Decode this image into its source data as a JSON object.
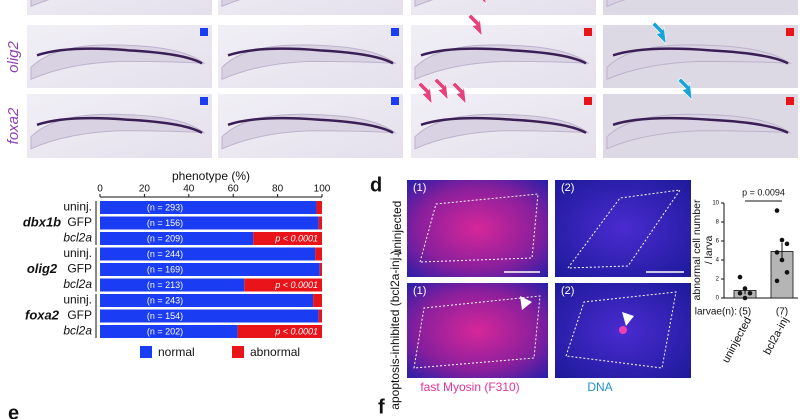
{
  "gene_labels": [
    "olig2",
    "foxa2"
  ],
  "panel_labels": {
    "d": "d",
    "e": "e",
    "f": "f"
  },
  "panel_d": {
    "rows": [
      "uninjected",
      "apoptosis-inhibited (bcl2a-inj.)"
    ],
    "columns": [
      "(1)",
      "(2)"
    ],
    "stain_labels": [
      {
        "text": "fast Myosin (F310)",
        "color": "#e0339a"
      },
      {
        "text": "DNA",
        "color": "#1f8fd6"
      }
    ]
  },
  "chart_data": [
    {
      "type": "bar",
      "orientation": "horizontal",
      "stacked": true,
      "xlabel": "phenotype (%)",
      "groups": [
        "dbx1b",
        "olig2",
        "foxa2"
      ],
      "categories": [
        "uninj.",
        "GFP",
        "bcl2a",
        "uninj.",
        "GFP",
        "bcl2a",
        "uninj.",
        "GFP",
        "bcl2a"
      ],
      "n_labels": [
        "(n = 293)",
        "(n = 156)",
        "(n = 209)",
        "(n = 244)",
        "(n = 169)",
        "(n = 213)",
        "(n = 243)",
        "(n = 154)",
        "(n = 202)"
      ],
      "p_labels": [
        null,
        null,
        "p < 0.0001",
        null,
        null,
        "p < 0.0001",
        null,
        null,
        "p < 0.0001"
      ],
      "series": [
        {
          "name": "normal",
          "color": "#1a3cf2",
          "values": [
            97.5,
            98.5,
            69,
            97,
            99,
            65,
            96,
            98.5,
            62
          ]
        },
        {
          "name": "abnormal",
          "color": "#e8141a",
          "values": [
            2.5,
            1.5,
            31,
            3,
            1,
            35,
            4,
            1.5,
            38
          ]
        }
      ],
      "xlim": [
        0,
        100
      ],
      "xticks": [
        0,
        20,
        40,
        60,
        80,
        100
      ]
    },
    {
      "type": "bar",
      "stacked": false,
      "ylabel": [
        "abnormal cell number",
        "/ larva"
      ],
      "categories": [
        "uninjected",
        "bcl2a-inj"
      ],
      "values": [
        0.8,
        4.9
      ],
      "errors": [
        0.4,
        0.9
      ],
      "points": [
        [
          2.2,
          1.0,
          0.5,
          0.5,
          0
        ],
        [
          9.2,
          6.1,
          5.7,
          4.8,
          4.0,
          2.7,
          1.8
        ]
      ],
      "color": "#b5b5b5",
      "annotation": "p = 0.0094",
      "n_title": "larvae(n):",
      "n_labels": [
        "(5)",
        "(7)"
      ],
      "ylim": [
        0,
        10
      ],
      "yticks": [
        0,
        2,
        4,
        6,
        8,
        10
      ]
    }
  ]
}
